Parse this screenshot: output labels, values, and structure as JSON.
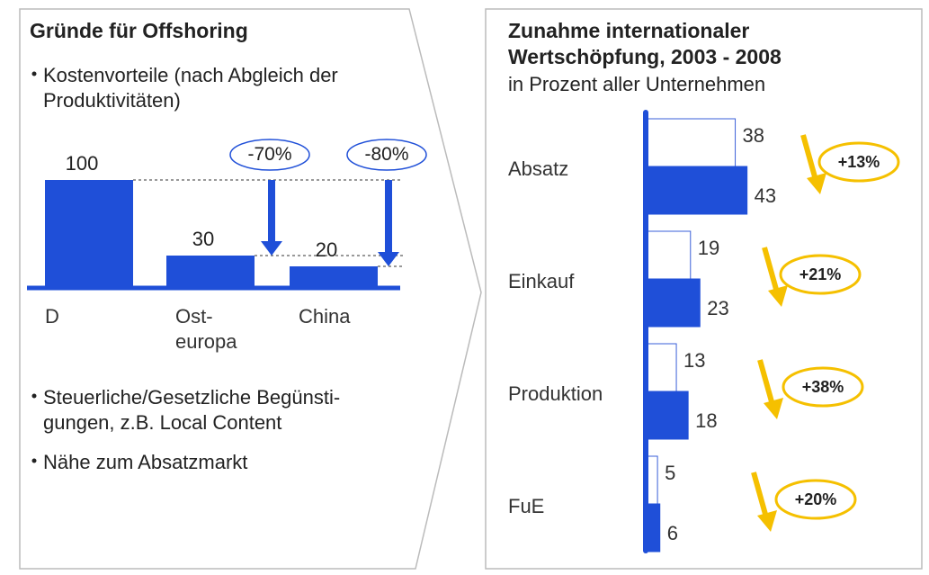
{
  "chart_data": [
    {
      "type": "bar",
      "title": "Gründe für Offshoring",
      "bullets": [
        "Kostenvorteile (nach Abgleich der\nProduktivitäten)",
        "Steuerliche/Gesetzliche Begünsti-\ngungen, z.B. Local Content",
        "Nähe zum Absatzmarkt"
      ],
      "categories": [
        "D",
        "Ost-\neuropa",
        "China"
      ],
      "values": [
        100,
        30,
        20
      ],
      "color": "#1f4fd8",
      "annotations": [
        "-70%",
        "-80%"
      ]
    },
    {
      "type": "hbar",
      "title": "Zunahme internationaler\nWertschöpfung, 2003 - 2008",
      "subtitle": "in Prozent aller Unternehmen",
      "categories": [
        "Absatz",
        "Einkauf",
        "Produktion",
        "FuE"
      ],
      "series": [
        {
          "color": "#ffffff",
          "values": [
            38,
            19,
            13,
            5
          ]
        },
        {
          "color": "#1f4fd8",
          "values": [
            43,
            23,
            18,
            6
          ]
        }
      ],
      "change_labels": [
        "+13%",
        "+21%",
        "+38%",
        "+20%"
      ],
      "arrow_color": "#f5c000"
    }
  ]
}
